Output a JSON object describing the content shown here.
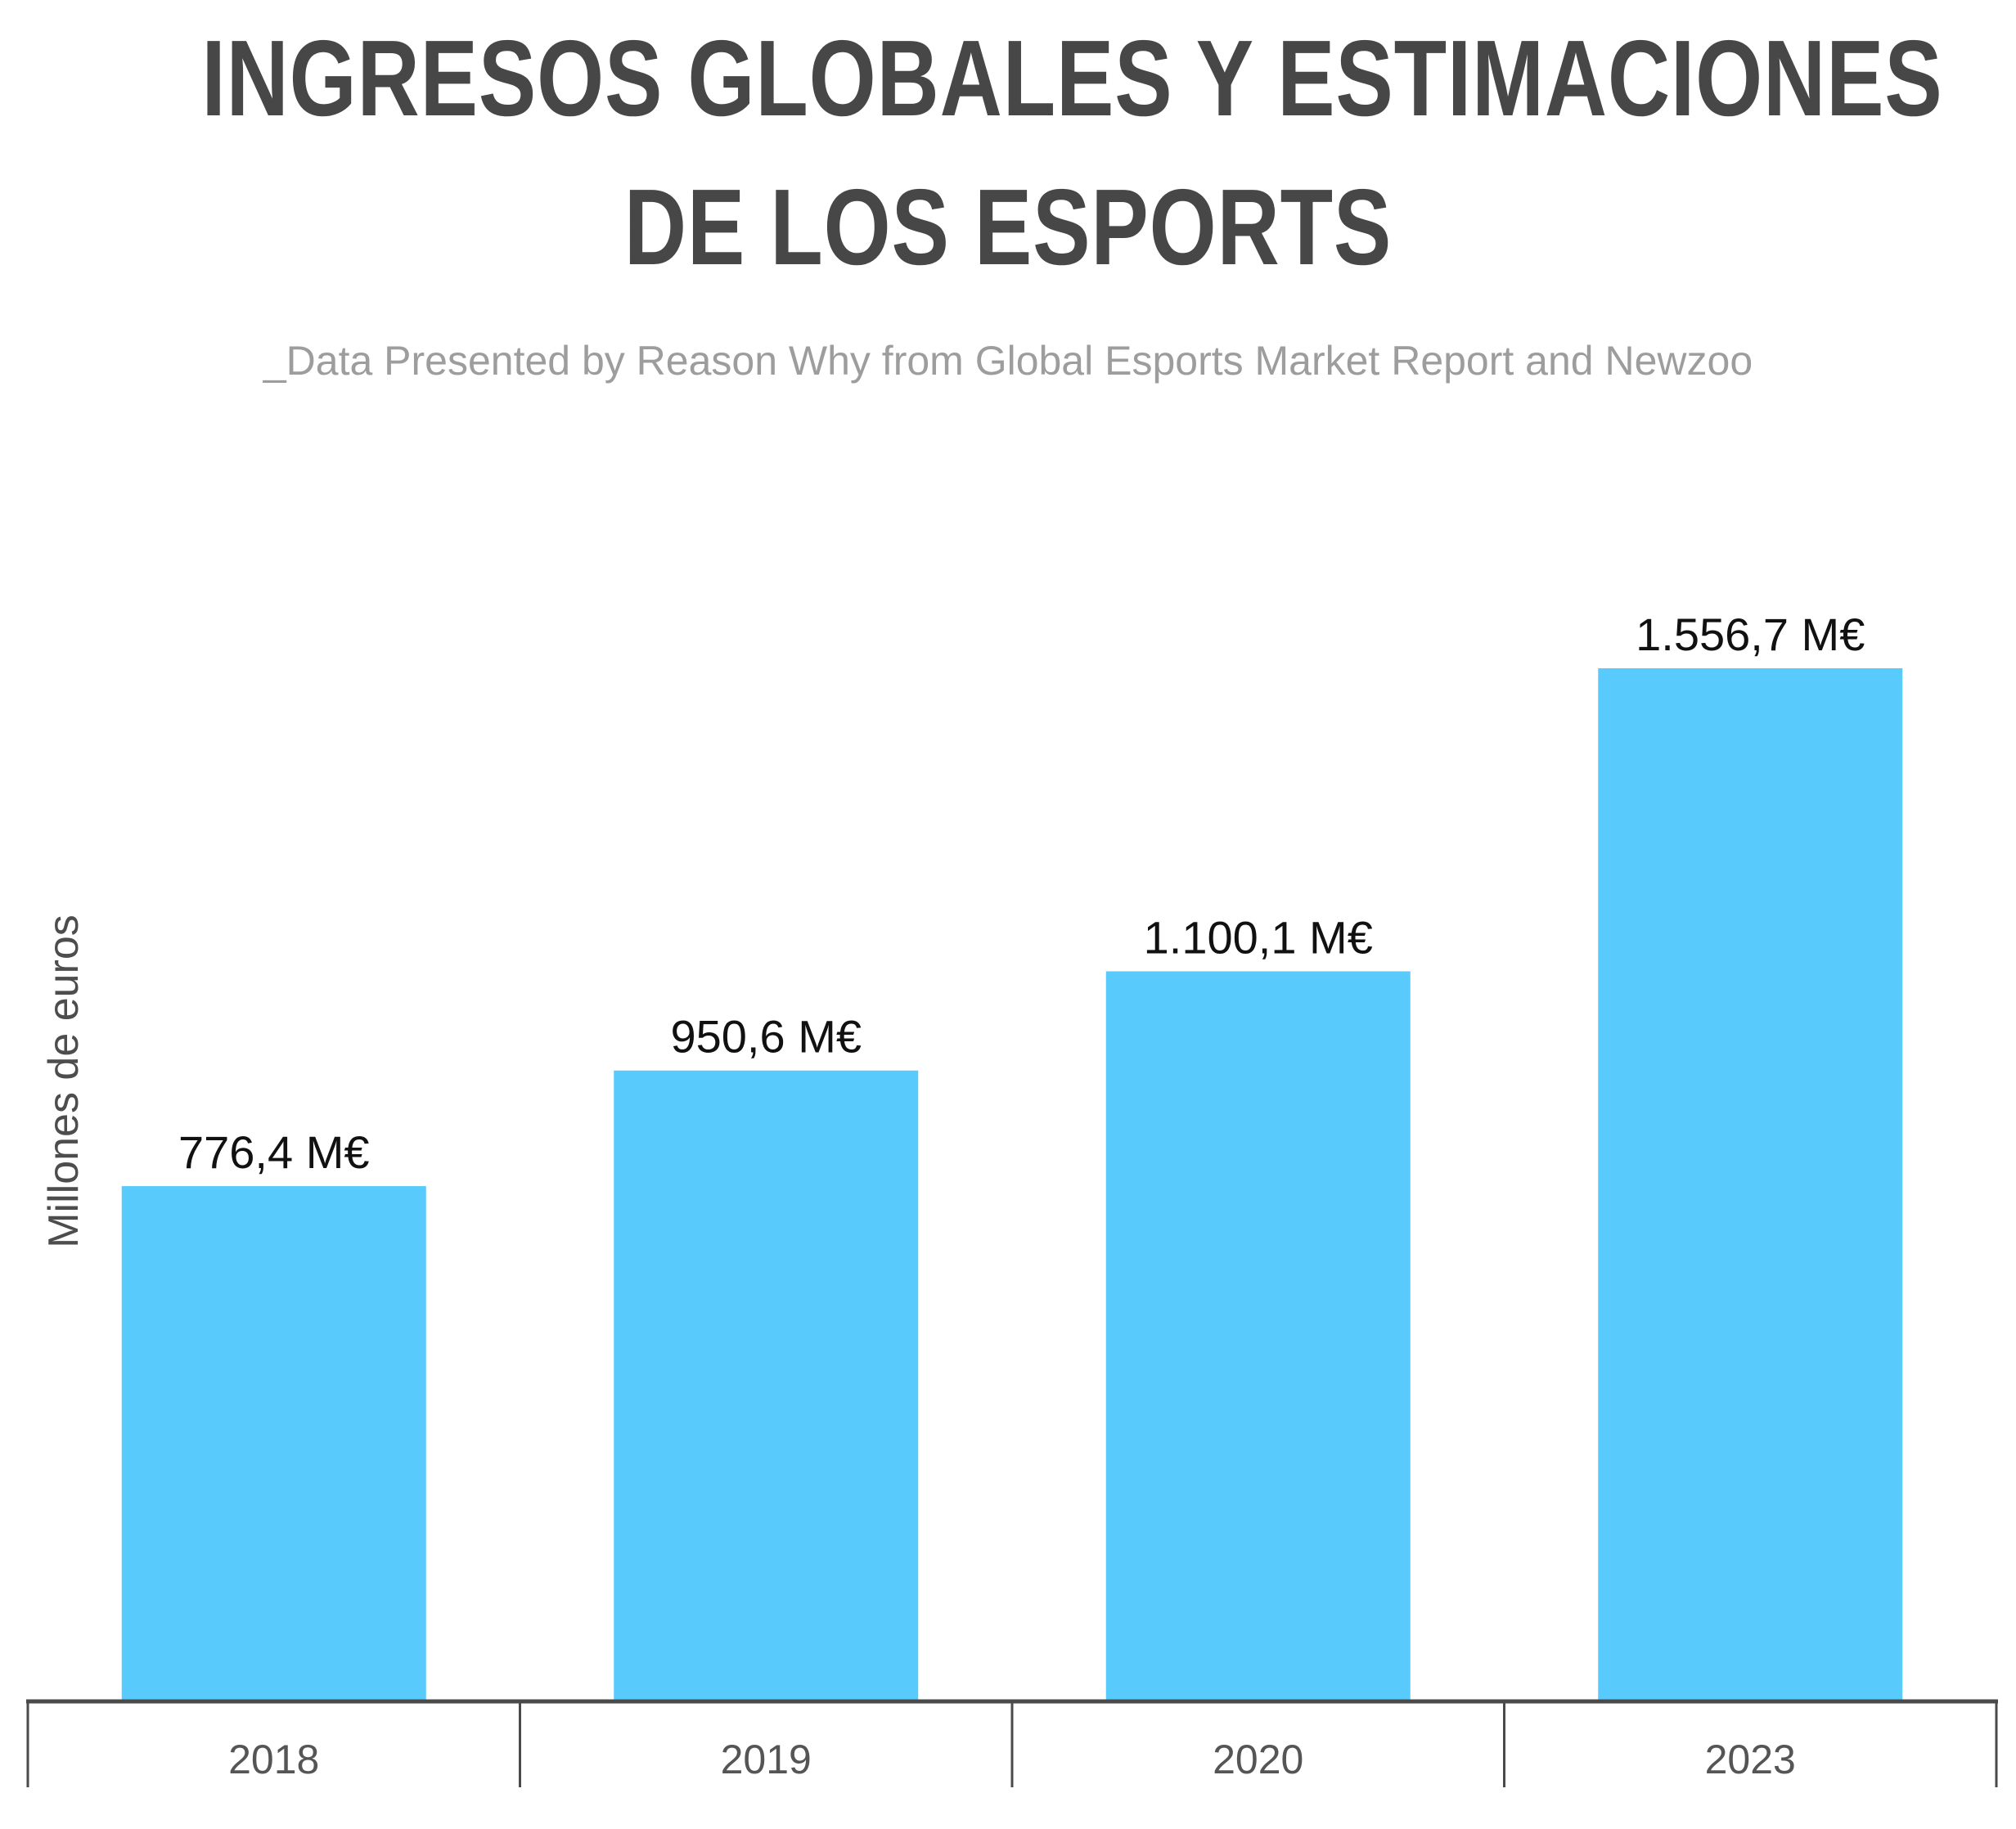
{
  "chart_data": {
    "type": "bar",
    "title_lines": [
      "INGRESOS GLOBALES Y ESTIMACIONES",
      "DE LOS ESPORTS"
    ],
    "subtitle": "_Data Presented by Reason Why from Global Esports Market Report and Newzoo",
    "ylabel": "Millones de euros",
    "categories": [
      "2018",
      "2019",
      "2020",
      "2023"
    ],
    "values": [
      776.4,
      950.6,
      1100.1,
      1556.7
    ],
    "value_labels": [
      "776,4 M€",
      "950,6 M€",
      "1.100,1 M€",
      "1.556,7 M€"
    ],
    "ylim": [
      0,
      1556.7
    ],
    "grid": false,
    "legend": "none",
    "colors": {
      "bar": "#58cbfc",
      "title": "#474747",
      "subtitle": "#9d9d9d",
      "axis": "#4a4a4a"
    }
  }
}
